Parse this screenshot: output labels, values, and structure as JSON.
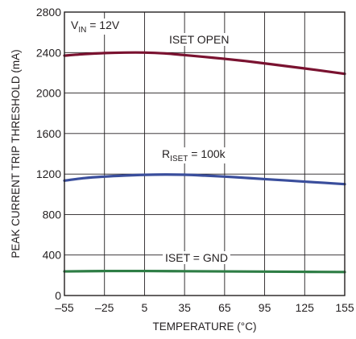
{
  "chart_data": {
    "type": "line",
    "xlabel": "TEMPERATURE (°C)",
    "ylabel": "PEAK CURRENT TRIP THRESHOLD (mA)",
    "xlim": [
      -55,
      155
    ],
    "ylim": [
      0,
      2800
    ],
    "x_ticks": [
      -55,
      -25,
      5,
      35,
      65,
      95,
      125,
      155
    ],
    "x_tick_labels": [
      "–55",
      "–25",
      "5",
      "35",
      "65",
      "95",
      "125",
      "155"
    ],
    "y_ticks": [
      0,
      400,
      800,
      1200,
      1600,
      2000,
      2400,
      2800
    ],
    "y_tick_labels": [
      "0",
      "400",
      "800",
      "1200",
      "1600",
      "2000",
      "2400",
      "2800"
    ],
    "grid": true,
    "condition": {
      "main": "V",
      "sub": "IN",
      "rest": " = 12V"
    },
    "series": [
      {
        "color": "#7a1230",
        "x": [
          -55,
          -40,
          -25,
          -10,
          5,
          20,
          35,
          50,
          65,
          80,
          95,
          110,
          125,
          140,
          155
        ],
        "y": [
          2370,
          2385,
          2395,
          2400,
          2400,
          2392,
          2375,
          2357,
          2338,
          2317,
          2293,
          2268,
          2243,
          2217,
          2190
        ],
        "label": {
          "main": "ISET OPEN",
          "sub": "",
          "rest": ""
        }
      },
      {
        "color": "#3a4e9c",
        "x": [
          -55,
          -40,
          -25,
          -10,
          5,
          20,
          35,
          50,
          65,
          80,
          95,
          110,
          125,
          140,
          155
        ],
        "y": [
          1135,
          1160,
          1175,
          1185,
          1192,
          1195,
          1193,
          1185,
          1175,
          1163,
          1150,
          1138,
          1125,
          1113,
          1100
        ],
        "label": {
          "main": "R",
          "sub": "ISET",
          "rest": " = 100k"
        }
      },
      {
        "color": "#2e7d45",
        "x": [
          -55,
          -25,
          5,
          35,
          65,
          95,
          125,
          155
        ],
        "y": [
          238,
          242,
          242,
          240,
          238,
          236,
          234,
          232
        ],
        "label": {
          "main": "ISET = GND",
          "sub": "",
          "rest": ""
        }
      }
    ]
  }
}
